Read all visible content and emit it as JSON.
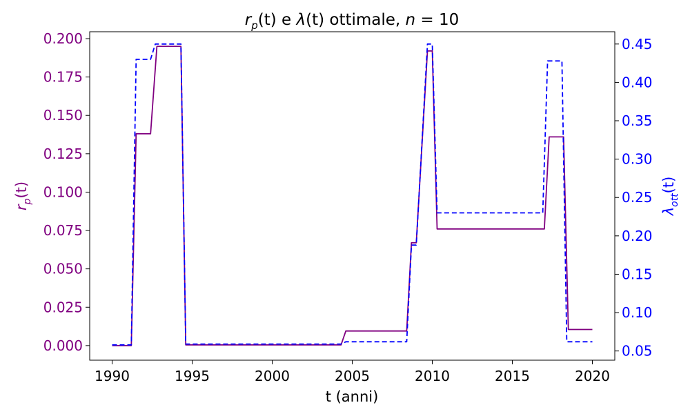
{
  "chart_data": {
    "type": "line",
    "title": "r_p(t) e λ(t) ottimale, n = 10",
    "title_parts": {
      "a": "r",
      "a_sub": "p",
      "b": "(t) e ",
      "c": "λ",
      "d": "(t) ottimale, ",
      "e": "n",
      "f": " = 10"
    },
    "xlabel": "t (anni)",
    "ylabel_left": {
      "main": "r",
      "sub": "p",
      "rest": "(t)"
    },
    "ylabel_right": {
      "main": "λ",
      "sub": "ott",
      "rest": "(t)"
    },
    "xlim": [
      1988.6,
      2021.4
    ],
    "ylim_left": [
      -0.0095,
      0.2045
    ],
    "ylim_right": [
      0.038,
      0.466
    ],
    "x_ticks": [
      1990,
      1995,
      2000,
      2005,
      2010,
      2015,
      2020
    ],
    "x_tick_labels": [
      "1990",
      "1995",
      "2000",
      "2005",
      "2010",
      "2015",
      "2020"
    ],
    "y_left_ticks": [
      0.0,
      0.025,
      0.05,
      0.075,
      0.1,
      0.125,
      0.15,
      0.175,
      0.2
    ],
    "y_left_tick_labels": [
      "0.000",
      "0.025",
      "0.050",
      "0.075",
      "0.100",
      "0.125",
      "0.150",
      "0.175",
      "0.200"
    ],
    "y_right_ticks": [
      0.05,
      0.1,
      0.15,
      0.2,
      0.25,
      0.3,
      0.35,
      0.4,
      0.45
    ],
    "y_right_tick_labels": [
      "0.05",
      "0.10",
      "0.15",
      "0.20",
      "0.25",
      "0.30",
      "0.35",
      "0.40",
      "0.45"
    ],
    "grid": false,
    "colors": {
      "left_axis": "#800080",
      "right_axis": "#0000ff"
    },
    "series": [
      {
        "axis": "left",
        "style": "solid",
        "color": "#800080",
        "x": [
          1990.0,
          1991.2,
          1991.5,
          1992.4,
          1992.8,
          1994.3,
          1994.6,
          2004.3,
          2004.6,
          2008.4,
          2008.7,
          2009.0,
          2009.7,
          2010.0,
          2010.3,
          2017.0,
          2017.3,
          2018.2,
          2018.5,
          2020.0
        ],
        "y": [
          0.0,
          0.0,
          0.138,
          0.138,
          0.195,
          0.195,
          0.0005,
          0.0005,
          0.0095,
          0.0095,
          0.067,
          0.067,
          0.192,
          0.192,
          0.076,
          0.076,
          0.136,
          0.136,
          0.0105,
          0.0105
        ]
      },
      {
        "axis": "right",
        "style": "dashed",
        "color": "#0000ff",
        "x": [
          1990.0,
          1991.2,
          1991.5,
          1992.4,
          1992.7,
          1994.3,
          1994.6,
          2004.3,
          2004.6,
          2008.4,
          2008.7,
          2009.0,
          2009.7,
          2010.0,
          2010.3,
          2016.9,
          2017.2,
          2018.1,
          2018.4,
          2020.0
        ],
        "y": [
          0.058,
          0.058,
          0.43,
          0.43,
          0.45,
          0.45,
          0.059,
          0.059,
          0.062,
          0.062,
          0.188,
          0.188,
          0.45,
          0.45,
          0.23,
          0.23,
          0.428,
          0.428,
          0.062,
          0.062
        ]
      }
    ]
  }
}
